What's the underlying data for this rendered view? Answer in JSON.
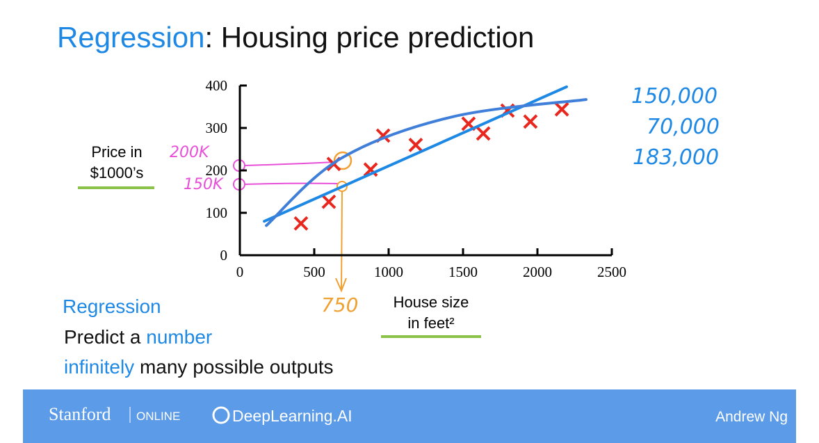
{
  "slide": {
    "title": {
      "highlight": "Regression",
      "rest": ": Housing price prediction"
    },
    "notes": {
      "heading": "Regression",
      "line1": [
        "Predict a ",
        "number"
      ],
      "line2": [
        "infinitely",
        " many possible outputs"
      ]
    },
    "handwritten": [
      "150,000",
      "70,000",
      "183,000"
    ],
    "footer": {
      "brand": "Stanford",
      "brand_sub": "ONLINE",
      "partner": "DeepLearning.AI",
      "author": "Andrew Ng"
    }
  },
  "chart_data": {
    "type": "scatter",
    "x_label": [
      "House size",
      "in feet²"
    ],
    "y_label": [
      "Price in",
      "$1000’s"
    ],
    "xlim": [
      0,
      2500
    ],
    "ylim": [
      0,
      400
    ],
    "xticks": [
      0,
      500,
      1000,
      1500,
      2000,
      2500
    ],
    "yticks": [
      0,
      100,
      200,
      300,
      400
    ],
    "series": [
      {
        "color": "#e8281e",
        "x": [
          411,
          598,
          631,
          879,
          963,
          1182,
          1537,
          1636,
          1799,
          1953,
          2164
        ],
        "values": [
          75,
          126,
          215,
          202,
          282,
          260,
          310,
          287,
          341,
          315,
          344
        ]
      },
      {
        "type": "line",
        "color": "#1e88e5",
        "x": [
          164,
          2196
        ],
        "values": [
          80,
          397
        ]
      },
      {
        "type": "line",
        "color": "#3f7fd9",
        "x": [
          178,
          678,
          1425,
          2327
        ],
        "values": [
          70,
          228,
          326,
          367
        ]
      }
    ],
    "annotations": {
      "pink": [
        "200K",
        "150K"
      ],
      "orange": "750"
    }
  }
}
